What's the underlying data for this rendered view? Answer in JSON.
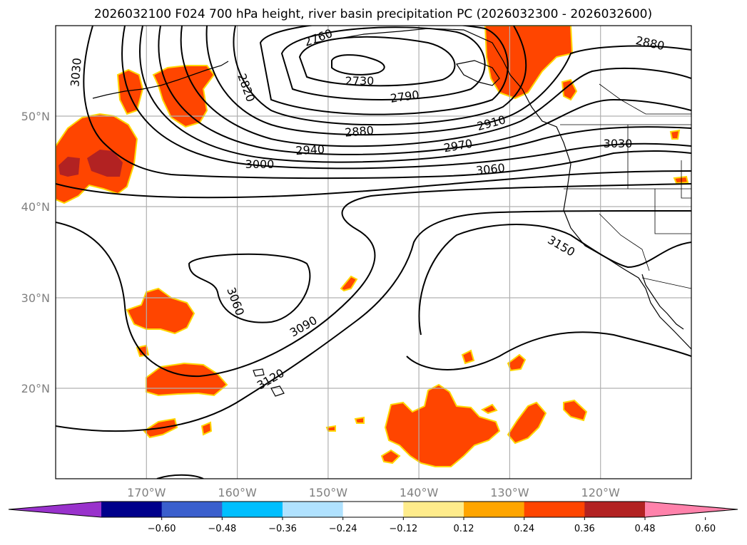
{
  "title": "2026032100 F024 700 hPa height, river basin precipitation PC (2026032300 - 2026032600)",
  "map": {
    "lat_labels": [
      {
        "lat": 50,
        "text": "50°N"
      },
      {
        "lat": 40,
        "text": "40°N"
      },
      {
        "lat": 30,
        "text": "30°N"
      },
      {
        "lat": 20,
        "text": "20°N"
      }
    ],
    "lon_labels": [
      {
        "lon": -170,
        "text": "170°W"
      },
      {
        "lon": -160,
        "text": "160°W"
      },
      {
        "lon": -150,
        "text": "150°W"
      },
      {
        "lon": -140,
        "text": "140°W"
      },
      {
        "lon": -130,
        "text": "130°W"
      },
      {
        "lon": -120,
        "text": "120°W"
      }
    ],
    "extent": {
      "lon_min": -180,
      "lon_max": -110,
      "lat_min": 10,
      "lat_max": 60
    },
    "contour_labels": [
      "2730",
      "2760",
      "2790",
      "2820",
      "2880",
      "2880",
      "2910",
      "2940",
      "2970",
      "3000",
      "3030",
      "3030",
      "3060",
      "3060",
      "3090",
      "3120",
      "3150"
    ]
  },
  "colorbar": {
    "tick_labels": [
      "−0.60",
      "−0.48",
      "−0.36",
      "−0.24",
      "−0.12",
      "0.12",
      "0.24",
      "0.36",
      "0.48",
      "0.60"
    ],
    "colors": [
      "#9932cc",
      "#00008b",
      "#3a5fcd",
      "#00bfff",
      "#b0e2ff",
      "#ffffff",
      "#ffec8b",
      "#ffa500",
      "#ff4500",
      "#b22222",
      "#ff82ab"
    ]
  },
  "shading_colors": {
    "level1": "#ff4500",
    "level2": "#b22222",
    "edge": "#ffd700"
  }
}
